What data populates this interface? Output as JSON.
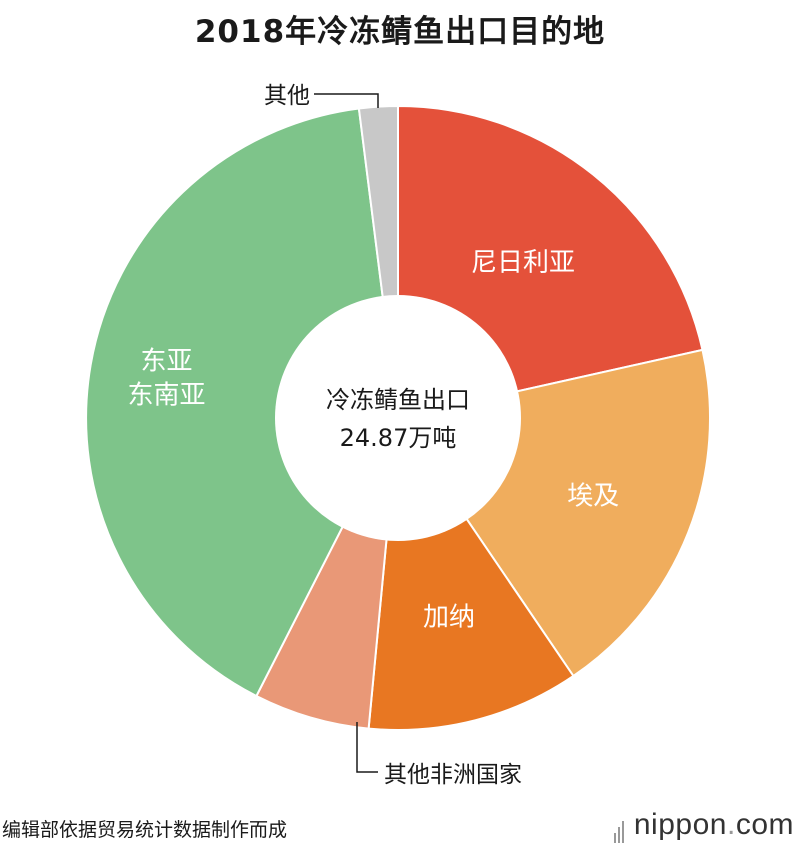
{
  "title": "2018年冷冻鲭鱼出口目的地",
  "center": {
    "line1": "冷冻鲭鱼出口",
    "line2": "24.87万吨"
  },
  "source": "编辑部依据贸易统计数据制作而成",
  "brand": {
    "name": "nippon",
    "dot": ".",
    "tld": "com"
  },
  "chart_data": {
    "type": "pie",
    "title": "2018年冷冻鲭鱼出口目的地",
    "slices": [
      {
        "label": "尼日利亚",
        "value": 21.5,
        "color": "#e4513a",
        "label_style": "inside"
      },
      {
        "label": "埃及",
        "value": 19.0,
        "color": "#f0ad5d",
        "label_style": "inside"
      },
      {
        "label": "加纳",
        "value": 11.0,
        "color": "#e87722",
        "label_style": "inside"
      },
      {
        "label": "其他非洲国家",
        "value": 6.0,
        "color": "#e99877",
        "label_style": "outside"
      },
      {
        "label": "东亚\n东南亚",
        "value": 40.5,
        "color": "#7ec48a",
        "label_style": "inside"
      },
      {
        "label": "其他",
        "value": 2.0,
        "color": "#c8c8c8",
        "label_style": "outside"
      }
    ],
    "unit": "%",
    "donut": true
  }
}
